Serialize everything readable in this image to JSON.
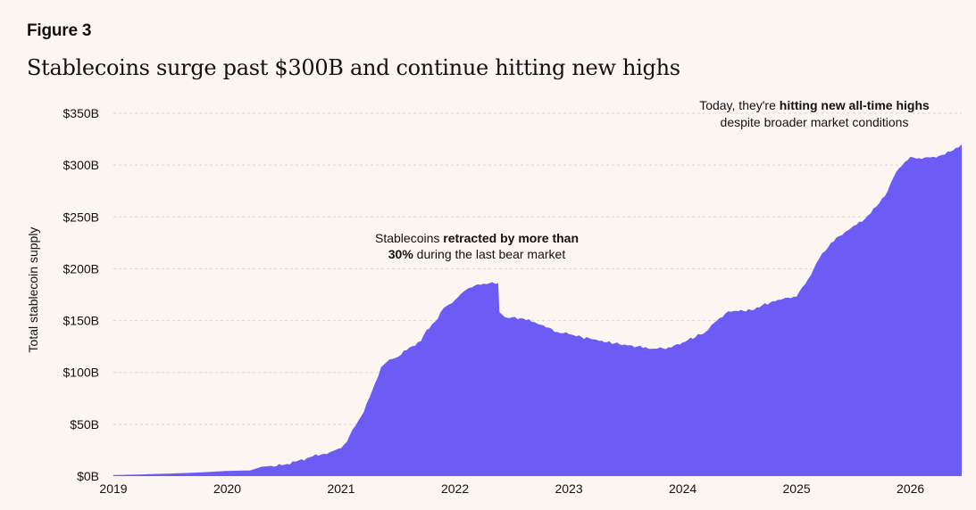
{
  "figure_label": "Figure 3",
  "title": "Stablecoins surge past $300B and continue hitting new highs",
  "colors": {
    "background": "#fcf6f3",
    "area": "#6c5cf5",
    "grid": "#d9d3d0"
  },
  "chart_data": {
    "type": "area",
    "title": "Stablecoins surge past $300B and continue hitting new highs",
    "xlabel": "",
    "ylabel": "Total stablecoin supply",
    "ylim": [
      0,
      350
    ],
    "y_ticks": [
      "$0B",
      "$50B",
      "$100B",
      "$150B",
      "$200B",
      "$250B",
      "$300B",
      "$350B"
    ],
    "y_tick_values": [
      0,
      50,
      100,
      150,
      200,
      250,
      300,
      350
    ],
    "xlim": [
      2019,
      2026.45
    ],
    "x_ticks": [
      "2019",
      "2020",
      "2021",
      "2022",
      "2023",
      "2024",
      "2025",
      "2026"
    ],
    "x_tick_values": [
      2019,
      2020,
      2021,
      2022,
      2023,
      2024,
      2025,
      2026
    ],
    "grid": "horizontal dashed",
    "series": [
      {
        "x": [
          2019.0,
          2019.2,
          2019.5,
          2019.75,
          2020.0,
          2020.2,
          2020.3,
          2020.5,
          2020.6,
          2020.75,
          2020.9,
          2021.0,
          2021.05,
          2021.1,
          2021.2,
          2021.3,
          2021.35,
          2021.4,
          2021.45,
          2021.5,
          2021.6,
          2021.7,
          2021.75,
          2021.85,
          2021.9,
          2022.0,
          2022.1,
          2022.2,
          2022.3,
          2022.38,
          2022.39,
          2022.45,
          2022.6,
          2022.75,
          2022.9,
          2023.0,
          2023.2,
          2023.4,
          2023.6,
          2023.75,
          2023.9,
          2024.0,
          2024.2,
          2024.3,
          2024.4,
          2024.6,
          2024.7,
          2024.9,
          2025.0,
          2025.1,
          2025.2,
          2025.3,
          2025.45,
          2025.6,
          2025.7,
          2025.8,
          2025.85,
          2025.9,
          2026.0,
          2026.1,
          2026.2,
          2026.3,
          2026.35,
          2026.45
        ],
        "values": [
          1,
          1.5,
          2.5,
          3.5,
          5,
          5.5,
          9,
          11,
          14,
          19,
          23,
          27,
          33,
          45,
          62,
          90,
          105,
          110,
          113,
          115,
          124,
          130,
          141,
          152,
          162,
          170,
          180,
          185,
          186,
          186,
          158,
          153,
          152,
          146,
          139,
          137,
          132,
          128,
          125,
          123,
          124,
          129,
          139,
          150,
          159,
          160,
          165,
          172,
          173,
          190,
          210,
          225,
          237,
          248,
          260,
          275,
          288,
          297,
          308,
          306,
          308,
          310,
          313,
          320
        ]
      }
    ],
    "annotations": [
      {
        "parts": [
          {
            "text": "Stablecoins ",
            "bold": false
          },
          {
            "text": "retracted by more than",
            "bold": true
          }
        ],
        "line2": [
          {
            "text": "30%",
            "bold": true
          },
          {
            "text": " during the last bear market",
            "bold": false
          }
        ]
      },
      {
        "parts": [
          {
            "text": "Today,  they're ",
            "bold": false
          },
          {
            "text": "hitting new all-time highs",
            "bold": true
          }
        ],
        "line2": [
          {
            "text": "despite broader market conditions",
            "bold": false
          }
        ]
      }
    ]
  }
}
